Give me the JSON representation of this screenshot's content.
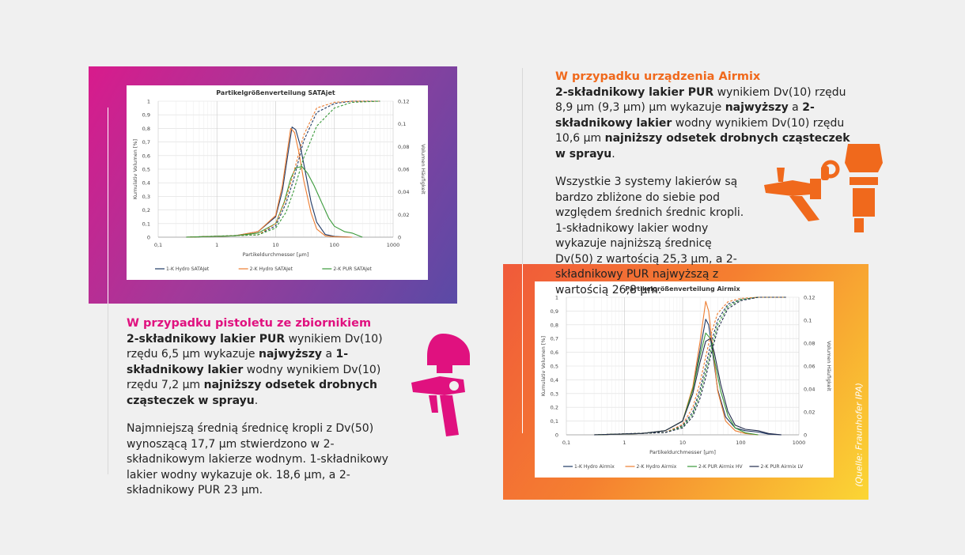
{
  "colors": {
    "magenta": "#e0117f",
    "orange": "#f0691c",
    "series_blue": "#1f3864",
    "series_orange": "#ed7d31",
    "series_green": "#3a9a3a",
    "series_dark": "#222b4c"
  },
  "icons": [
    "spray-gun-magenta-icon",
    "spray-gun-orange-icon",
    "paint-cup-icon"
  ],
  "section1": {
    "heading": "W przypadku pistoletu ze zbiornikiem",
    "p1": [
      {
        "t": "2-składnikowy lakier PUR",
        "b": true
      },
      {
        "t": " wynikiem Dv(10) rzędu 6,5 µm wykazuje ",
        "b": false
      },
      {
        "t": "najwyższy",
        "b": true
      },
      {
        "t": " a ",
        "b": false
      },
      {
        "t": "1-składnikowy lakier",
        "b": true
      },
      {
        "t": " wodny wynikiem Dv(10) rzędu 7,2 µm ",
        "b": false
      },
      {
        "t": "najniższy odsetek drobnych cząsteczek w sprayu",
        "b": true
      },
      {
        "t": ".",
        "b": false
      }
    ],
    "p2": "Najmniejszą średnią średnicę kropli z Dv(50) wynoszącą 17,7 µm stwierdzono w 2-składnikowym lakierze wodnym. 1-składnikowy lakier wodny wykazuje ok. 18,6 µm, a 2-składnikowy PUR 23 µm."
  },
  "section2": {
    "heading": "W przypadku urządzenia Airmix",
    "p1": [
      {
        "t": "2-składnikowy lakier PUR",
        "b": true
      },
      {
        "t": " wynikiem Dv(10) rzędu 8,9 µm (9,3 µm) µm wykazuje ",
        "b": false
      },
      {
        "t": "najwyższy",
        "b": true
      },
      {
        "t": " a ",
        "b": false
      },
      {
        "t": "2-składnikowy lakier",
        "b": true
      },
      {
        "t": " wodny wynikiem Dv(10) rzędu 10,6 µm ",
        "b": false
      },
      {
        "t": "najniższy odsetek drobnych cząsteczek w sprayu",
        "b": true
      },
      {
        "t": ".",
        "b": false
      }
    ],
    "p2": "Wszystkie 3 systemy lakierów są bardzo zbliżone do siebie pod względem średnich średnic kropli. 1-składnikowy lakier wodny wykazuje najniższą średnicę Dv(50) z wartością 25,3 µm, a 2-składnikowy PUR najwyższą z wartością 26,8 µm."
  },
  "source_note": "(Quelle: Fraunhofer IPA)",
  "chart_data": [
    {
      "type": "line",
      "title": "Partikelgrößenverteilung SATAjet",
      "xlabel": "Partikeldurchmesser  [µm]",
      "ylabel_left": "Kumulativ Volumen [%]",
      "ylabel_right": "Volumen Häufigkeit",
      "x_scale": "log",
      "xlim": [
        0.1,
        1000
      ],
      "ylim_left": [
        0,
        1
      ],
      "ylim_right": [
        0,
        0.12
      ],
      "x_ticks": [
        "0,1",
        "1",
        "10",
        "100",
        "1000"
      ],
      "y_left_ticks": [
        "0",
        "0,1",
        "0,2",
        "0,3",
        "0,4",
        "0,5",
        "0,6",
        "0,7",
        "0,8",
        "0,9",
        "1"
      ],
      "y_right_ticks": [
        "0",
        "0,02",
        "0,04",
        "0,06",
        "0,08",
        "0,1",
        "0,12"
      ],
      "grid": true,
      "legend_position": "bottom",
      "series": [
        {
          "name": "1-K Hydro SATAJet",
          "color": "#1f3864",
          "axis": "left",
          "x": [
            0.3,
            2,
            5,
            10,
            13,
            16,
            19,
            22,
            26,
            32,
            40,
            50,
            70,
            100,
            200
          ],
          "y": [
            0,
            0.01,
            0.04,
            0.15,
            0.34,
            0.6,
            0.81,
            0.79,
            0.68,
            0.48,
            0.26,
            0.11,
            0.02,
            0.005,
            0
          ]
        },
        {
          "name": "2-K Hydro SATAJet",
          "color": "#ed7d31",
          "axis": "left",
          "x": [
            0.3,
            2,
            5,
            10,
            13,
            16,
            18,
            21,
            25,
            30,
            40,
            50,
            70,
            100,
            200
          ],
          "y": [
            0,
            0.01,
            0.04,
            0.16,
            0.38,
            0.65,
            0.8,
            0.77,
            0.62,
            0.42,
            0.18,
            0.06,
            0.01,
            0.003,
            0
          ]
        },
        {
          "name": "2-K PUR SATAJet",
          "color": "#3a9a3a",
          "axis": "left",
          "x": [
            0.3,
            2,
            5,
            10,
            14,
            18,
            22,
            28,
            35,
            45,
            60,
            80,
            100,
            150,
            200,
            300
          ],
          "y": [
            0,
            0.01,
            0.03,
            0.1,
            0.26,
            0.43,
            0.51,
            0.52,
            0.47,
            0.38,
            0.26,
            0.14,
            0.08,
            0.04,
            0.03,
            0
          ]
        },
        {
          "name": "1-K Hydro SATAJet cum",
          "color": "#1f3864",
          "axis": "right",
          "dashed": true,
          "x": [
            0.3,
            5,
            10,
            15,
            20,
            30,
            50,
            100,
            200,
            600
          ],
          "y": [
            0,
            0.002,
            0.01,
            0.03,
            0.05,
            0.085,
            0.11,
            0.118,
            0.12,
            0.12
          ]
        },
        {
          "name": "2-K Hydro SATAJet cum",
          "color": "#ed7d31",
          "axis": "right",
          "dashed": true,
          "x": [
            0.3,
            5,
            10,
            15,
            20,
            30,
            50,
            100,
            200,
            600
          ],
          "y": [
            0,
            0.002,
            0.012,
            0.034,
            0.056,
            0.09,
            0.114,
            0.119,
            0.12,
            0.12
          ]
        },
        {
          "name": "2-K PUR SATAJet cum",
          "color": "#3a9a3a",
          "axis": "right",
          "dashed": true,
          "x": [
            0.3,
            5,
            10,
            15,
            20,
            30,
            50,
            100,
            200,
            600
          ],
          "y": [
            0,
            0.002,
            0.008,
            0.022,
            0.04,
            0.07,
            0.098,
            0.114,
            0.119,
            0.12
          ]
        }
      ],
      "legend": [
        "1-K Hydro SATAJet",
        "2-K Hydro SATAJet",
        "2-K PUR SATAJet"
      ]
    },
    {
      "type": "line",
      "title": "Partikelgrößenverteilung Airmix",
      "xlabel": "Partikeldurchmesser  [µm]",
      "ylabel_left": "Kumulativ Volumen [%]",
      "ylabel_right": "Volumen Häufigkeit",
      "x_scale": "log",
      "xlim": [
        0.1,
        1000
      ],
      "ylim_left": [
        0,
        1
      ],
      "ylim_right": [
        0,
        0.12
      ],
      "x_ticks": [
        "0,1",
        "1",
        "10",
        "100",
        "1000"
      ],
      "y_left_ticks": [
        "0",
        "0,1",
        "0,2",
        "0,3",
        "0,4",
        "0,5",
        "0,6",
        "0,7",
        "0,8",
        "0,9",
        "1"
      ],
      "y_right_ticks": [
        "0",
        "0,02",
        "0,04",
        "0,06",
        "0,08",
        "0,1",
        "0,12"
      ],
      "grid": true,
      "legend_position": "bottom",
      "series": [
        {
          "name": "1-K Hydro Airmix",
          "color": "#1f3864",
          "axis": "left",
          "x": [
            0.3,
            2,
            5,
            10,
            15,
            20,
            25,
            28,
            32,
            40,
            55,
            80,
            120,
            200,
            300,
            500
          ],
          "y": [
            0,
            0.01,
            0.03,
            0.1,
            0.33,
            0.62,
            0.84,
            0.8,
            0.63,
            0.33,
            0.13,
            0.05,
            0.03,
            0.02,
            0.005,
            0
          ]
        },
        {
          "name": "2-K Hydro Airmix",
          "color": "#ed7d31",
          "axis": "left",
          "x": [
            0.3,
            2,
            5,
            10,
            15,
            20,
            25,
            28,
            32,
            40,
            55,
            80,
            120,
            200
          ],
          "y": [
            0,
            0.01,
            0.03,
            0.1,
            0.35,
            0.68,
            0.97,
            0.9,
            0.68,
            0.32,
            0.1,
            0.03,
            0.01,
            0
          ]
        },
        {
          "name": "2-K PUR Airmix HV",
          "color": "#3a9a3a",
          "axis": "left",
          "x": [
            0.3,
            2,
            5,
            10,
            15,
            20,
            25,
            30,
            35,
            45,
            60,
            80,
            120,
            200
          ],
          "y": [
            0,
            0.01,
            0.03,
            0.1,
            0.33,
            0.58,
            0.74,
            0.7,
            0.55,
            0.32,
            0.14,
            0.05,
            0.015,
            0
          ]
        },
        {
          "name": "2-K PUR Airmix LV",
          "color": "#222b4c",
          "axis": "left",
          "x": [
            0.3,
            2,
            5,
            10,
            15,
            20,
            25,
            30,
            35,
            45,
            60,
            80,
            120,
            200,
            300,
            500
          ],
          "y": [
            0,
            0.01,
            0.03,
            0.1,
            0.3,
            0.53,
            0.68,
            0.7,
            0.6,
            0.37,
            0.17,
            0.07,
            0.04,
            0.03,
            0.01,
            0
          ]
        },
        {
          "name": "1-K Hydro Airmix cum",
          "color": "#1f3864",
          "axis": "right",
          "dashed": true,
          "x": [
            0.3,
            5,
            10,
            15,
            20,
            25,
            30,
            40,
            60,
            100,
            200,
            600
          ],
          "y": [
            0,
            0.002,
            0.008,
            0.02,
            0.04,
            0.06,
            0.078,
            0.1,
            0.114,
            0.118,
            0.12,
            0.12
          ]
        },
        {
          "name": "2-K Hydro Airmix cum",
          "color": "#ed7d31",
          "axis": "right",
          "dashed": true,
          "x": [
            0.3,
            5,
            10,
            15,
            20,
            25,
            30,
            40,
            60,
            100,
            200,
            600
          ],
          "y": [
            0,
            0.002,
            0.009,
            0.024,
            0.046,
            0.068,
            0.086,
            0.106,
            0.116,
            0.119,
            0.12,
            0.12
          ]
        },
        {
          "name": "2-K PUR Airmix HV cum",
          "color": "#3a9a3a",
          "axis": "right",
          "dashed": true,
          "x": [
            0.3,
            5,
            10,
            15,
            20,
            25,
            30,
            40,
            60,
            100,
            200,
            600
          ],
          "y": [
            0,
            0.002,
            0.007,
            0.018,
            0.036,
            0.055,
            0.072,
            0.096,
            0.112,
            0.118,
            0.12,
            0.12
          ]
        },
        {
          "name": "2-K PUR Airmix LV cum",
          "color": "#222b4c",
          "axis": "right",
          "dashed": true,
          "x": [
            0.3,
            5,
            10,
            15,
            20,
            25,
            30,
            40,
            60,
            100,
            200,
            600
          ],
          "y": [
            0,
            0.002,
            0.006,
            0.016,
            0.032,
            0.05,
            0.068,
            0.092,
            0.11,
            0.117,
            0.12,
            0.12
          ]
        }
      ],
      "legend": [
        "1-K Hydro Airmix",
        "2-K Hydro Airmix",
        "2-K PUR Airmix HV",
        "2-K PUR Airmix LV"
      ]
    }
  ]
}
